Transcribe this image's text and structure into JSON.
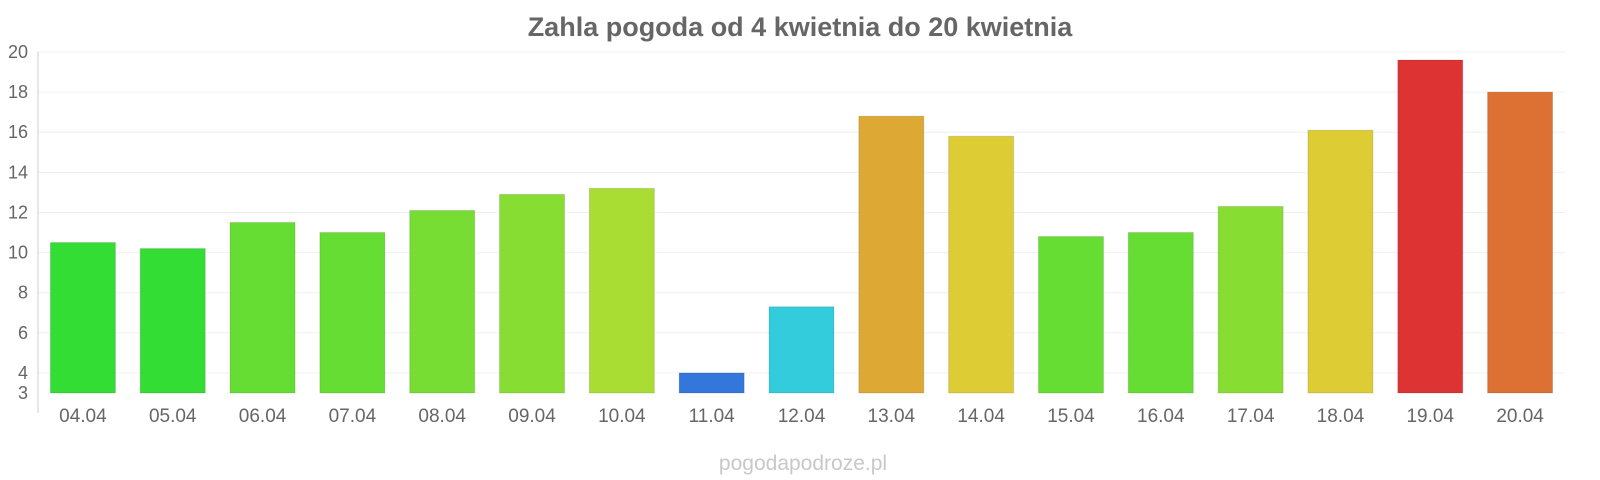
{
  "watermark": "pogodapodroze.pl",
  "chart_data": {
    "type": "bar",
    "title": "Zahla pogoda od 4 kwietnia do 20 kwietnia",
    "xlabel": "",
    "ylabel": "",
    "ylim": [
      3,
      20
    ],
    "yticks": [
      3,
      4,
      6,
      8,
      10,
      12,
      14,
      16,
      18,
      20
    ],
    "grid": true,
    "legend": "none",
    "categories": [
      "04.04",
      "05.04",
      "06.04",
      "07.04",
      "08.04",
      "09.04",
      "10.04",
      "11.04",
      "12.04",
      "13.04",
      "14.04",
      "15.04",
      "16.04",
      "17.04",
      "18.04",
      "19.04",
      "20.04"
    ],
    "values": [
      10.5,
      10.2,
      11.5,
      11.0,
      12.1,
      12.9,
      13.2,
      4.0,
      7.3,
      16.8,
      15.8,
      10.8,
      11.0,
      12.3,
      16.1,
      19.6,
      18.0
    ],
    "colors": [
      "#33dd33",
      "#33dd33",
      "#66dd33",
      "#66dd33",
      "#77dd33",
      "#88dd33",
      "#aadd33",
      "#3377dd",
      "#33ccdd",
      "#dda833",
      "#ddcc33",
      "#66dd33",
      "#66dd33",
      "#88dd33",
      "#ddcc33",
      "#dd3333",
      "#dd7033"
    ]
  }
}
